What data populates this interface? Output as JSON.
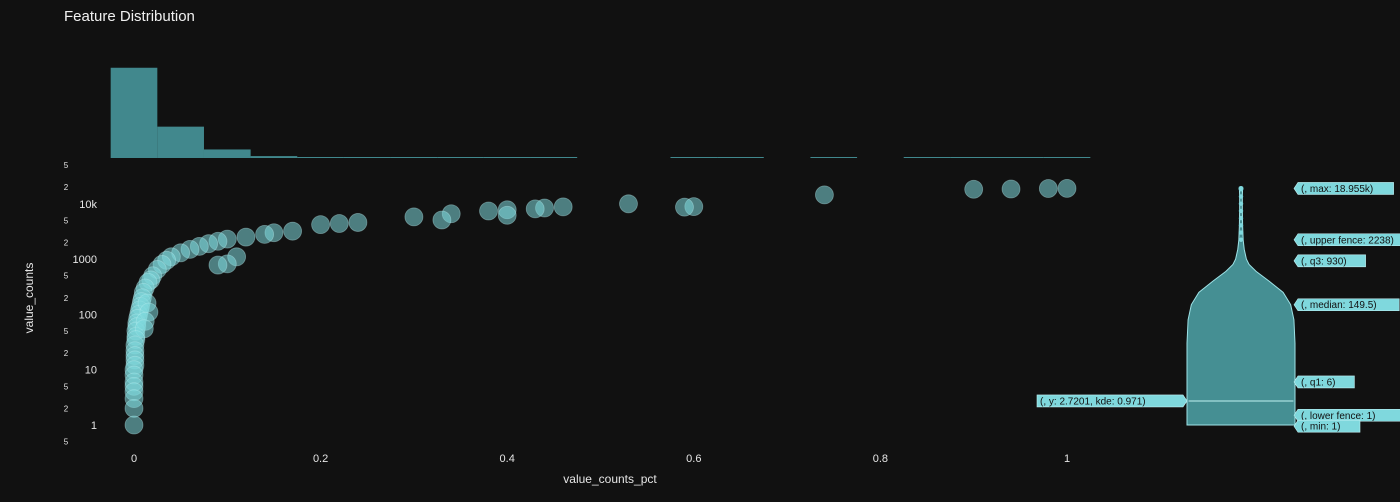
{
  "chart_data": {
    "type": "scatter",
    "title": "Feature Distribution",
    "xlabel": "value_counts_pct",
    "ylabel": "value_counts",
    "xlim": [
      -0.03,
      1.03
    ],
    "ylim": [
      0.6,
      40000
    ],
    "yscale": "log",
    "grid": false,
    "colors": {
      "marker": "#7fd8dd",
      "histogram": "#4a9ea3",
      "violin": "#4b9da2",
      "background": "#111111"
    },
    "x_ticks": [
      {
        "value": 0,
        "label": "0"
      },
      {
        "value": 0.2,
        "label": "0.2"
      },
      {
        "value": 0.4,
        "label": "0.4"
      },
      {
        "value": 0.6,
        "label": "0.6"
      },
      {
        "value": 0.8,
        "label": "0.8"
      },
      {
        "value": 1,
        "label": "1"
      }
    ],
    "y_ticks": [
      {
        "value": 1,
        "label": "1"
      },
      {
        "value": 10,
        "label": "10"
      },
      {
        "value": 100,
        "label": "100"
      },
      {
        "value": 1000,
        "label": "1000"
      },
      {
        "value": 10000,
        "label": "10k"
      }
    ],
    "y_minor_ticks": [
      {
        "value": 0.5,
        "label": "5"
      },
      {
        "value": 2,
        "label": "2"
      },
      {
        "value": 5,
        "label": "5"
      },
      {
        "value": 20,
        "label": "2"
      },
      {
        "value": 50,
        "label": "5"
      },
      {
        "value": 200,
        "label": "2"
      },
      {
        "value": 500,
        "label": "5"
      },
      {
        "value": 2000,
        "label": "2"
      },
      {
        "value": 5000,
        "label": "5"
      },
      {
        "value": 20000,
        "label": "2"
      },
      {
        "value": 50000,
        "label": "5"
      }
    ],
    "points": [
      {
        "x": 1.0,
        "y": 19000
      },
      {
        "x": 0.98,
        "y": 18900
      },
      {
        "x": 0.94,
        "y": 18500
      },
      {
        "x": 0.9,
        "y": 18300
      },
      {
        "x": 0.74,
        "y": 14500
      },
      {
        "x": 0.53,
        "y": 10000
      },
      {
        "x": 0.6,
        "y": 8900
      },
      {
        "x": 0.59,
        "y": 8700
      },
      {
        "x": 0.46,
        "y": 8800
      },
      {
        "x": 0.44,
        "y": 8400
      },
      {
        "x": 0.43,
        "y": 8100
      },
      {
        "x": 0.4,
        "y": 7800
      },
      {
        "x": 0.38,
        "y": 7400
      },
      {
        "x": 0.4,
        "y": 6200
      },
      {
        "x": 0.34,
        "y": 6600
      },
      {
        "x": 0.3,
        "y": 5800
      },
      {
        "x": 0.33,
        "y": 5100
      },
      {
        "x": 0.24,
        "y": 4600
      },
      {
        "x": 0.22,
        "y": 4400
      },
      {
        "x": 0.2,
        "y": 4200
      },
      {
        "x": 0.17,
        "y": 3200
      },
      {
        "x": 0.15,
        "y": 3000
      },
      {
        "x": 0.14,
        "y": 2800
      },
      {
        "x": 0.12,
        "y": 2500
      },
      {
        "x": 0.1,
        "y": 2300
      },
      {
        "x": 0.09,
        "y": 2100
      },
      {
        "x": 0.08,
        "y": 1900
      },
      {
        "x": 0.07,
        "y": 1700
      },
      {
        "x": 0.06,
        "y": 1500
      },
      {
        "x": 0.05,
        "y": 1300
      },
      {
        "x": 0.04,
        "y": 1100
      },
      {
        "x": 0.035,
        "y": 950
      },
      {
        "x": 0.11,
        "y": 1100
      },
      {
        "x": 0.1,
        "y": 820
      },
      {
        "x": 0.09,
        "y": 780
      },
      {
        "x": 0.03,
        "y": 800
      },
      {
        "x": 0.025,
        "y": 650
      },
      {
        "x": 0.02,
        "y": 500
      },
      {
        "x": 0.018,
        "y": 420
      },
      {
        "x": 0.015,
        "y": 380
      },
      {
        "x": 0.012,
        "y": 300
      },
      {
        "x": 0.01,
        "y": 250
      },
      {
        "x": 0.009,
        "y": 200
      },
      {
        "x": 0.008,
        "y": 170
      },
      {
        "x": 0.007,
        "y": 140
      },
      {
        "x": 0.006,
        "y": 120
      },
      {
        "x": 0.005,
        "y": 100
      },
      {
        "x": 0.004,
        "y": 85
      },
      {
        "x": 0.003,
        "y": 70
      },
      {
        "x": 0.003,
        "y": 60
      },
      {
        "x": 0.002,
        "y": 50
      },
      {
        "x": 0.002,
        "y": 40
      },
      {
        "x": 0.014,
        "y": 160
      },
      {
        "x": 0.016,
        "y": 110
      },
      {
        "x": 0.012,
        "y": 75
      },
      {
        "x": 0.011,
        "y": 55
      },
      {
        "x": 0.002,
        "y": 35
      },
      {
        "x": 0.001,
        "y": 28
      },
      {
        "x": 0.001,
        "y": 22
      },
      {
        "x": 0.001,
        "y": 18
      },
      {
        "x": 0.001,
        "y": 15
      },
      {
        "x": 0.001,
        "y": 12
      },
      {
        "x": 0.0,
        "y": 10
      },
      {
        "x": 0.0,
        "y": 8
      },
      {
        "x": 0.0,
        "y": 6
      },
      {
        "x": 0.0,
        "y": 5
      },
      {
        "x": 0.0,
        "y": 4
      },
      {
        "x": 0.0,
        "y": 3
      },
      {
        "x": 0.0,
        "y": 2
      },
      {
        "x": 0.0,
        "y": 1
      }
    ],
    "histogram": {
      "bin_edges": [
        -0.025,
        0.025,
        0.075,
        0.125,
        0.175,
        0.225,
        0.275,
        0.325,
        0.375,
        0.425,
        0.475,
        0.525,
        0.575,
        0.625,
        0.675,
        0.725,
        0.775,
        0.825,
        0.875,
        0.925,
        0.975,
        1.025
      ],
      "counts": [
        95,
        33,
        9,
        2,
        1,
        1,
        1,
        1,
        1,
        1,
        0,
        0,
        1,
        1,
        0,
        1,
        0,
        1,
        1,
        1,
        1
      ],
      "ymax": 100
    },
    "violin": {
      "stats": {
        "max": 18955,
        "upper_fence": 2238,
        "q3": 930,
        "median": 149.5,
        "q1": 6,
        "lower_fence": 1,
        "min": 1
      },
      "kde_profile": [
        {
          "y": 1,
          "w": 1.0
        },
        {
          "y": 2,
          "w": 1.0
        },
        {
          "y": 5,
          "w": 1.0
        },
        {
          "y": 10,
          "w": 1.0
        },
        {
          "y": 30,
          "w": 1.0
        },
        {
          "y": 80,
          "w": 0.98
        },
        {
          "y": 150,
          "w": 0.92
        },
        {
          "y": 250,
          "w": 0.78
        },
        {
          "y": 400,
          "w": 0.52
        },
        {
          "y": 600,
          "w": 0.28
        },
        {
          "y": 800,
          "w": 0.15
        },
        {
          "y": 1000,
          "w": 0.1
        },
        {
          "y": 1500,
          "w": 0.06
        },
        {
          "y": 2238,
          "w": 0.04
        },
        {
          "y": 4000,
          "w": 0.03
        },
        {
          "y": 8000,
          "w": 0.025
        },
        {
          "y": 14000,
          "w": 0.025
        },
        {
          "y": 18955,
          "w": 0.03
        }
      ],
      "hover_line": {
        "y": 2.7201,
        "kde": 0.971
      }
    },
    "annotations": [
      {
        "key": "max",
        "y": 18955,
        "text": "(, max: 18.955k)"
      },
      {
        "key": "upper_fence",
        "y": 2238,
        "text": "(, upper fence: 2238)"
      },
      {
        "key": "q3",
        "y": 930,
        "text": "(, q3: 930)"
      },
      {
        "key": "median",
        "y": 149.5,
        "text": "(, median: 149.5)"
      },
      {
        "key": "q1",
        "y": 6,
        "text": "(, q1: 6)"
      },
      {
        "key": "lower_fence",
        "y": 1.5,
        "text": "(, lower fence: 1)"
      },
      {
        "key": "min",
        "y": 0.95,
        "text": "(, min: 1)"
      }
    ],
    "hover_label": {
      "y": 2.7201,
      "text": "(, y: 2.7201, kde: 0.971)"
    }
  }
}
